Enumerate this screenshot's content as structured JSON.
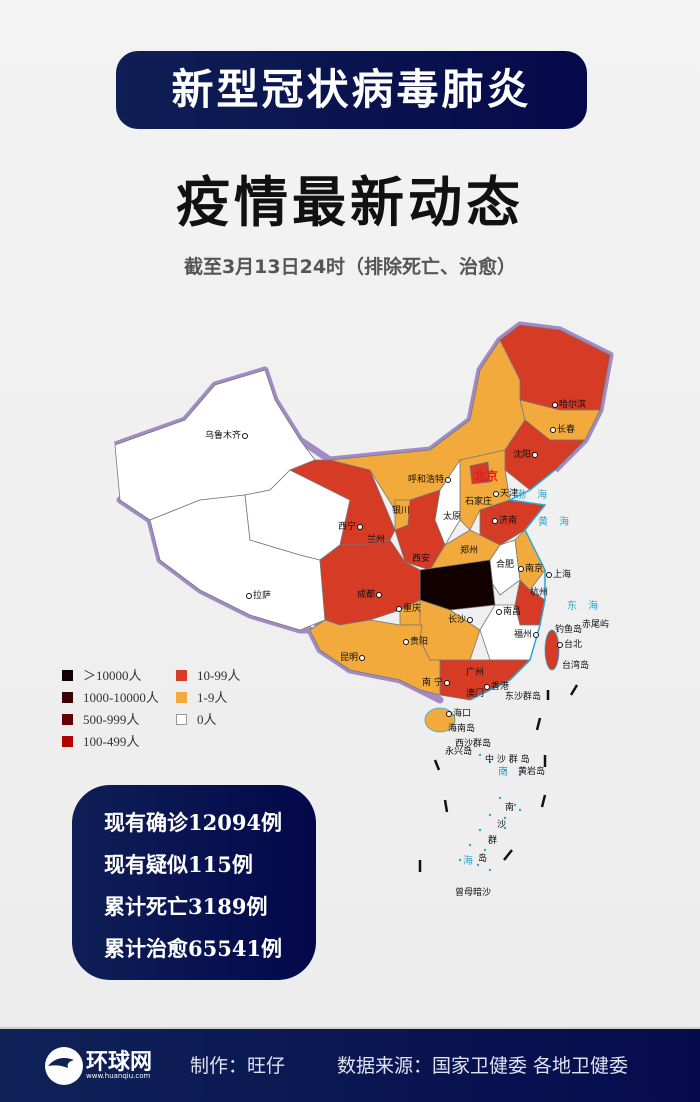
{
  "header": {
    "banner_title": "新型冠状病毒肺炎",
    "headline": "疫情最新动态",
    "note": "截至3月13日24时（排除死亡、治愈）"
  },
  "legend": {
    "items": [
      {
        "label": "＞10000人",
        "color": "#120000"
      },
      {
        "label": "1000-10000人",
        "color": "#3a0202"
      },
      {
        "label": "500-999人",
        "color": "#640000"
      },
      {
        "label": "100-499人",
        "color": "#b50000"
      },
      {
        "label": "10-99人",
        "color": "#d63b26"
      },
      {
        "label": "1-9人",
        "color": "#f2aa3c"
      },
      {
        "label": "0人",
        "color": "#ffffff"
      }
    ]
  },
  "map": {
    "region_levels": {
      "xinjiang": 6,
      "tibet": 6,
      "qinghai": 6,
      "gansu": 4,
      "inner_mongolia": 5,
      "heilongjiang": 4,
      "jilin": 5,
      "liaoning": 4,
      "hebei": 5,
      "shanxi": 6,
      "shaanxi": 4,
      "ningxia": 5,
      "shandong": 4,
      "henan": 5,
      "anhui": 6,
      "jiangsu": 5,
      "hubei": 0,
      "sichuan": 4,
      "chongqing": 5,
      "zhejiang": 4,
      "jiangxi_fujian": 6,
      "hunan": 5,
      "guangdong": 4,
      "southwest": 5,
      "hainan": 5,
      "taiwan": 4,
      "beijing": 4
    },
    "labels": [
      "乌鲁木齐",
      "哈尔滨",
      "长春",
      "沈阳",
      "呼和浩特",
      "北京",
      "天津",
      "石家庄",
      "太原",
      "银川",
      "济南",
      "西宁",
      "兰州",
      "黄 海",
      "渤 海",
      "西安",
      "郑州",
      "合肥",
      "南京",
      "上海",
      "成都",
      "杭州",
      "东 海",
      "拉萨",
      "重庆",
      "长沙",
      "南昌",
      "福州",
      "钓鱼岛",
      "赤尾屿",
      "台北",
      "昆明",
      "贵阳",
      "台湾岛",
      "广州",
      "南 宁",
      "香港",
      "澳门",
      "东沙群岛",
      "海口",
      "海南岛",
      "西沙群岛",
      "永兴岛",
      "中 沙 群 岛",
      "南",
      "黄岩岛",
      "南",
      "沙",
      "群",
      "海",
      "岛",
      "曾母暗沙"
    ]
  },
  "stats": [
    "现有确诊12094例",
    "现有疑似115例",
    "累计死亡3189例",
    "累计治愈65541例"
  ],
  "footer": {
    "logo_text": "环球网",
    "logo_url_text": "www.huanqiu.com",
    "author": "制作：旺仔",
    "source": "数据来源：国家卫健委 各地卫健委"
  }
}
